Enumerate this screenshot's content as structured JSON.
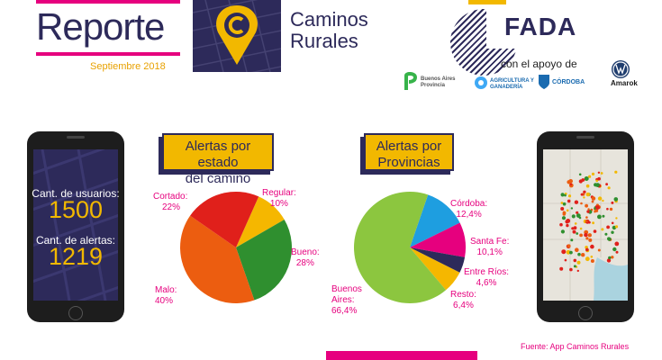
{
  "header": {
    "title": "Reporte",
    "date": "Septiembre 2018",
    "brand_line1": "Caminos",
    "brand_line2": "Rurales"
  },
  "sponsors": {
    "main": "FADA",
    "support_text": "con el apoyo de",
    "items": [
      "Buenos Aires Provincia",
      "AGRICULTURA Y GANADERÍA",
      "CÓRDOBA",
      "Amarok"
    ]
  },
  "stats": {
    "users_label": "Cant. de usuarios:",
    "users_value": "1500",
    "alerts_label": "Cant. de alertas:",
    "alerts_value": "1219"
  },
  "colors": {
    "navy": "#2d2a5a",
    "pink": "#e6007e",
    "yellow": "#f2b800"
  },
  "chart_data": [
    {
      "type": "pie",
      "title_line1": "Alertas por estado",
      "title_line2": "del camino",
      "slices": [
        {
          "name": "Regular:",
          "value": 10,
          "value_label": "10%",
          "color": "#f5b700"
        },
        {
          "name": "Bueno:",
          "value": 28,
          "value_label": "28%",
          "color": "#2f8f2f"
        },
        {
          "name": "Malo:",
          "value": 40,
          "value_label": "40%",
          "color": "#ec5d10"
        },
        {
          "name": "Cortado:",
          "value": 22,
          "value_label": "22%",
          "color": "#e0201b"
        }
      ]
    },
    {
      "type": "pie",
      "title_line1": "Alertas por",
      "title_line2": "Provincias",
      "slices": [
        {
          "name": "Córdoba:",
          "value": 12.4,
          "value_label": "12,4%",
          "color": "#1e9ee0"
        },
        {
          "name": "Santa Fe:",
          "value": 10.1,
          "value_label": "10,1%",
          "color": "#e6007e"
        },
        {
          "name": "Entre Ríos:",
          "value": 4.6,
          "value_label": "4,6%",
          "color": "#2d2a5a"
        },
        {
          "name": "Resto:",
          "value": 6.4,
          "value_label": "6,4%",
          "color": "#f5b700"
        },
        {
          "name": "Buenos Aires:",
          "name_line1": "Buenos",
          "name_line2": "Aires:",
          "value": 66.4,
          "value_label": "66,4%",
          "color": "#8cc63f"
        }
      ]
    }
  ],
  "footer": {
    "source": "Fuente: App Caminos Rurales"
  }
}
